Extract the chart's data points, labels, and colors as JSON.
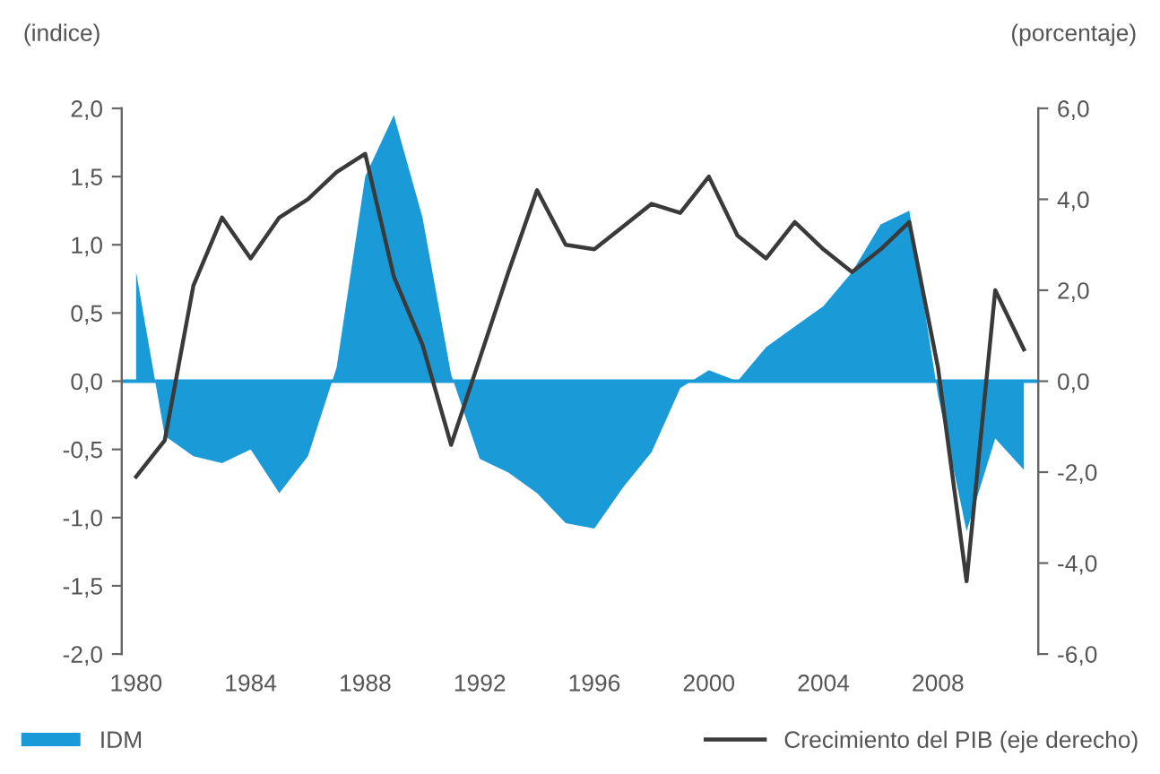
{
  "chart_data": {
    "type": "area",
    "ylabel": "(indice)",
    "y2label": "(porcentaje)",
    "x": [
      1980,
      1981,
      1982,
      1983,
      1984,
      1985,
      1986,
      1987,
      1988,
      1989,
      1990,
      1991,
      1992,
      1993,
      1994,
      1995,
      1996,
      1997,
      1998,
      1999,
      2000,
      2001,
      2002,
      2003,
      2004,
      2005,
      2006,
      2007,
      2008,
      2009,
      2010,
      2011
    ],
    "series": [
      {
        "name": "IDM",
        "color": "#1a9ad7",
        "values": [
          0.8,
          -0.4,
          -0.55,
          -0.6,
          -0.5,
          -0.82,
          -0.55,
          0.1,
          1.5,
          1.95,
          1.2,
          0.05,
          -0.57,
          -0.67,
          -0.82,
          -1.04,
          -1.08,
          -0.78,
          -0.52,
          -0.05,
          0.08,
          0.0,
          0.25,
          0.4,
          0.55,
          0.8,
          1.15,
          1.25,
          -0.1,
          -1.1,
          -0.42,
          -0.65
        ]
      },
      {
        "name": "Crecimiento del PIB (eje derecho)",
        "type": "line",
        "axis": "y2",
        "color": "#3a3a3a",
        "values": [
          -2.1,
          -1.3,
          2.1,
          3.6,
          2.7,
          3.6,
          4.0,
          4.6,
          5.0,
          2.3,
          0.8,
          -1.4,
          0.5,
          2.4,
          4.2,
          3.0,
          2.9,
          3.4,
          3.9,
          3.7,
          4.5,
          3.2,
          2.7,
          3.5,
          2.9,
          2.4,
          2.9,
          3.5,
          0.3,
          -4.4,
          2.0,
          0.7
        ]
      }
    ],
    "xlim": [
      1979.5,
      2011.5
    ],
    "xticks": [
      1980,
      1984,
      1988,
      1992,
      1996,
      2000,
      2004,
      2008
    ],
    "ylim": [
      -2,
      2
    ],
    "yticks": [
      {
        "value": -2,
        "label": "-2,0"
      },
      {
        "value": -1.5,
        "label": "-1,5"
      },
      {
        "value": -1,
        "label": "-1,0"
      },
      {
        "value": -0.5,
        "label": "-0,5"
      },
      {
        "value": 0,
        "label": "0,0"
      },
      {
        "value": 0.5,
        "label": "0,5"
      },
      {
        "value": 1,
        "label": "1,0"
      },
      {
        "value": 1.5,
        "label": "1,5"
      },
      {
        "value": 2,
        "label": "2,0"
      }
    ],
    "y2lim": [
      -6,
      6
    ],
    "y2ticks": [
      {
        "value": -6,
        "label": "-6,0"
      },
      {
        "value": -4,
        "label": "-4,0"
      },
      {
        "value": -2,
        "label": "-2,0"
      },
      {
        "value": 0,
        "label": "0,0"
      },
      {
        "value": 2,
        "label": "2,0"
      },
      {
        "value": 4,
        "label": "4,0"
      },
      {
        "value": 6,
        "label": "6,0"
      }
    ],
    "ref_lines": [
      {
        "axis": "y",
        "value": 0,
        "color": "#1a9ad7"
      }
    ],
    "grid": false,
    "legend": "bottom"
  }
}
